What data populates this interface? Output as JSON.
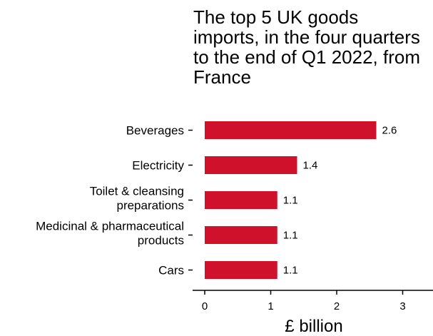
{
  "chart_data": {
    "type": "bar",
    "orientation": "horizontal",
    "title": "The top 5 UK goods imports, in the four quarters to the end of Q1 2022, from France",
    "categories": [
      [
        "Beverages"
      ],
      [
        "Electricity"
      ],
      [
        "Toilet & cleansing",
        "preparations"
      ],
      [
        "Medicinal & pharmaceutical",
        "products"
      ],
      [
        "Cars"
      ]
    ],
    "values": [
      2.6,
      1.4,
      1.1,
      1.1,
      1.1
    ],
    "data_labels": [
      "2.6",
      "1.4",
      "1.1",
      "1.1",
      "1.1"
    ],
    "xlabel": "£ billion",
    "xlim": [
      0,
      3.4
    ],
    "xticks": [
      0,
      1,
      2,
      3
    ],
    "xtick_labels": [
      "0",
      "1",
      "2",
      "3"
    ],
    "bar_color": "#D0112B",
    "grid": false,
    "legend": "none"
  }
}
